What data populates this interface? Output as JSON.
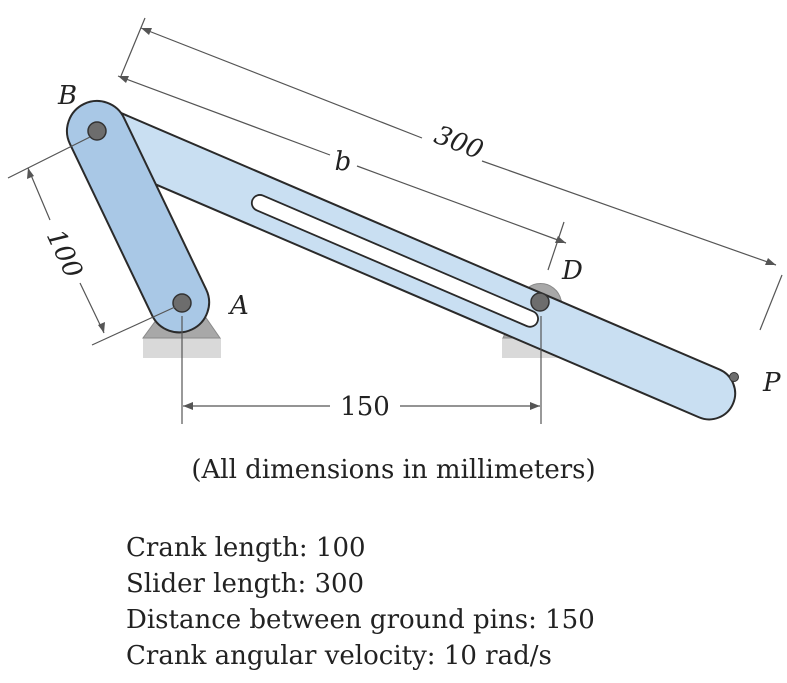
{
  "labels": {
    "point_b": "B",
    "point_a": "A",
    "point_d": "D",
    "point_p": "P",
    "dim_crank": "100",
    "dim_slider": "300",
    "dim_b": "b",
    "dim_ground": "150"
  },
  "caption": "(All dimensions in millimeters)",
  "specs": [
    "Crank length: 100",
    "Slider length: 300",
    "Distance between ground pins: 150",
    "Crank angular velocity: 10 rad/s"
  ],
  "colors": {
    "crank_fill": "#a9c8e6",
    "slider_fill": "#c9dff2",
    "outline": "#2a2a2a",
    "support": "#a8a8a8",
    "ground": "#d9d9d9",
    "pin": "#6d6d6d"
  }
}
